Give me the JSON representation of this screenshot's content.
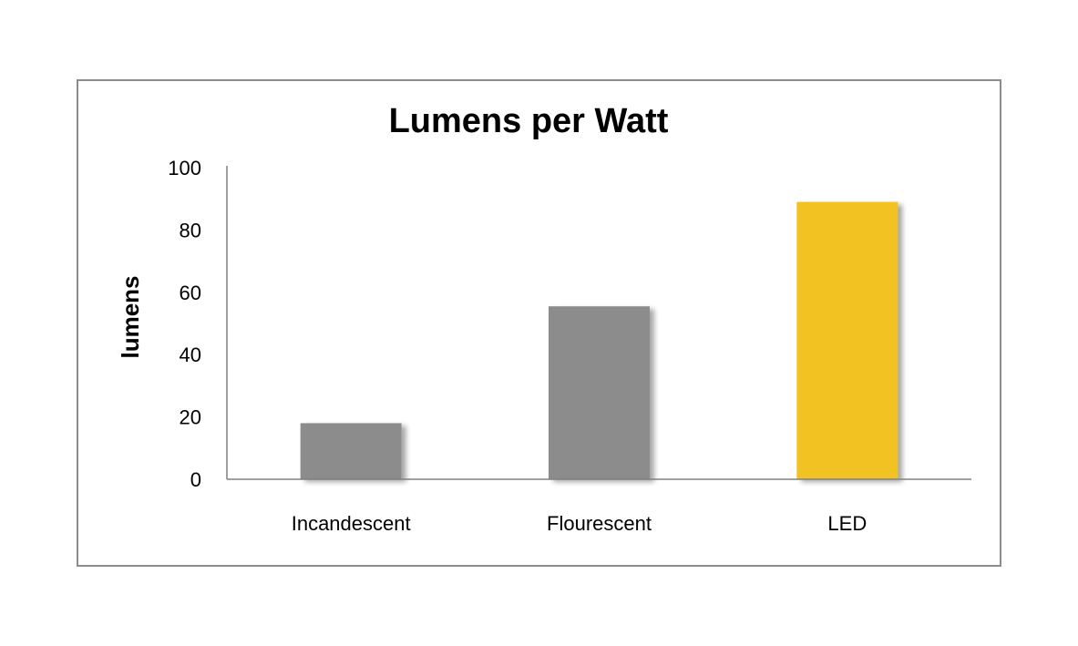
{
  "chart_data": {
    "type": "bar",
    "title": "Lumens per Watt",
    "xlabel": "",
    "ylabel": "lumens",
    "categories": [
      "Incandescent",
      "Flourescent",
      "LED"
    ],
    "values": [
      18,
      55.5,
      89
    ],
    "ylim": [
      0,
      100
    ],
    "yticks": [
      0,
      20,
      40,
      60,
      80,
      100
    ],
    "grid": false,
    "legend": "none",
    "colors": [
      "#8c8c8c",
      "#8c8c8c",
      "#f2c221"
    ],
    "frame_color": "#8c8c8c",
    "axis_color": "#808080"
  }
}
